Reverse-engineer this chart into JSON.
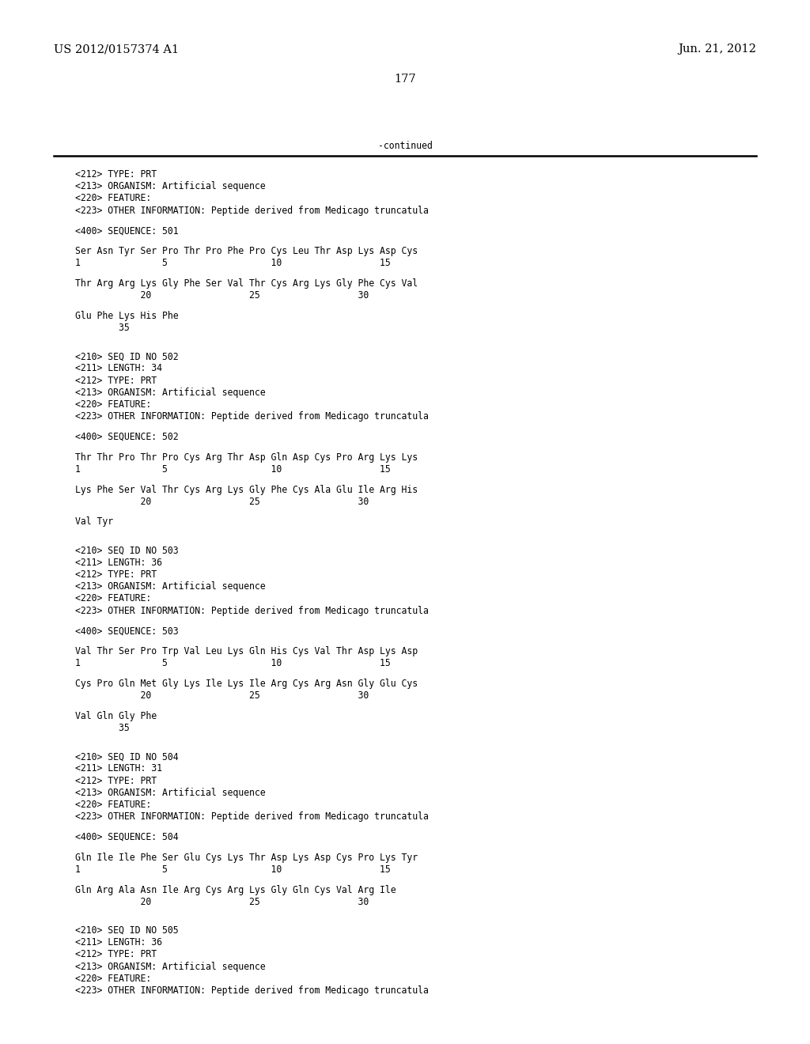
{
  "bg_color": "#ffffff",
  "header_left": "US 2012/0157374 A1",
  "header_right": "Jun. 21, 2012",
  "page_number": "177",
  "continued_text": "-continued",
  "font_size_header": 10.5,
  "font_size_mono": 8.3,
  "content": [
    "<212> TYPE: PRT",
    "<213> ORGANISM: Artificial sequence",
    "<220> FEATURE:",
    "<223> OTHER INFORMATION: Peptide derived from Medicago truncatula",
    "",
    "<400> SEQUENCE: 501",
    "",
    "Ser Asn Tyr Ser Pro Thr Pro Phe Pro Cys Leu Thr Asp Lys Asp Cys",
    "1               5                   10                  15",
    "",
    "Thr Arg Arg Lys Gly Phe Ser Val Thr Cys Arg Lys Gly Phe Cys Val",
    "            20                  25                  30",
    "",
    "Glu Phe Lys His Phe",
    "        35",
    "",
    "",
    "<210> SEQ ID NO 502",
    "<211> LENGTH: 34",
    "<212> TYPE: PRT",
    "<213> ORGANISM: Artificial sequence",
    "<220> FEATURE:",
    "<223> OTHER INFORMATION: Peptide derived from Medicago truncatula",
    "",
    "<400> SEQUENCE: 502",
    "",
    "Thr Thr Pro Thr Pro Cys Arg Thr Asp Gln Asp Cys Pro Arg Lys Lys",
    "1               5                   10                  15",
    "",
    "Lys Phe Ser Val Thr Cys Arg Lys Gly Phe Cys Ala Glu Ile Arg His",
    "            20                  25                  30",
    "",
    "Val Tyr",
    "",
    "",
    "<210> SEQ ID NO 503",
    "<211> LENGTH: 36",
    "<212> TYPE: PRT",
    "<213> ORGANISM: Artificial sequence",
    "<220> FEATURE:",
    "<223> OTHER INFORMATION: Peptide derived from Medicago truncatula",
    "",
    "<400> SEQUENCE: 503",
    "",
    "Val Thr Ser Pro Trp Val Leu Lys Gln His Cys Val Thr Asp Lys Asp",
    "1               5                   10                  15",
    "",
    "Cys Pro Gln Met Gly Lys Ile Lys Ile Arg Cys Arg Asn Gly Glu Cys",
    "            20                  25                  30",
    "",
    "Val Gln Gly Phe",
    "        35",
    "",
    "",
    "<210> SEQ ID NO 504",
    "<211> LENGTH: 31",
    "<212> TYPE: PRT",
    "<213> ORGANISM: Artificial sequence",
    "<220> FEATURE:",
    "<223> OTHER INFORMATION: Peptide derived from Medicago truncatula",
    "",
    "<400> SEQUENCE: 504",
    "",
    "Gln Ile Ile Phe Ser Glu Cys Lys Thr Asp Lys Asp Cys Pro Lys Tyr",
    "1               5                   10                  15",
    "",
    "Gln Arg Ala Asn Ile Arg Cys Arg Lys Gly Gln Cys Val Arg Ile",
    "            20                  25                  30",
    "",
    "",
    "<210> SEQ ID NO 505",
    "<211> LENGTH: 36",
    "<212> TYPE: PRT",
    "<213> ORGANISM: Artificial sequence",
    "<220> FEATURE:",
    "<223> OTHER INFORMATION: Peptide derived from Medicago truncatula"
  ]
}
